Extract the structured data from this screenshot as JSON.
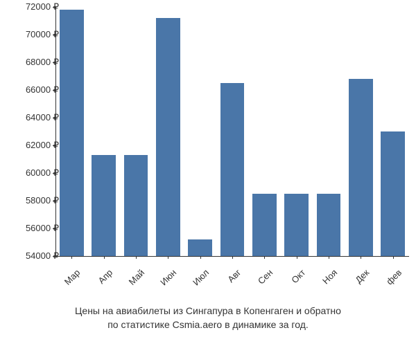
{
  "chart": {
    "type": "bar",
    "categories": [
      "Мар",
      "Апр",
      "Май",
      "Июн",
      "Июл",
      "Авг",
      "Сен",
      "Окт",
      "Ноя",
      "Дек",
      "фев"
    ],
    "values": [
      71800,
      61300,
      61300,
      71200,
      55200,
      66500,
      58500,
      58500,
      58500,
      66800,
      63000
    ],
    "bar_color": "#4a76a8",
    "ylim": [
      54000,
      72000
    ],
    "ytick_step": 2000,
    "ytick_labels": [
      "54000 ₽",
      "56000 ₽",
      "58000 ₽",
      "60000 ₽",
      "62000 ₽",
      "64000 ₽",
      "66000 ₽",
      "68000 ₽",
      "70000 ₽",
      "72000 ₽"
    ],
    "ytick_values": [
      54000,
      56000,
      58000,
      60000,
      62000,
      64000,
      66000,
      68000,
      70000,
      72000
    ],
    "background_color": "#ffffff",
    "axis_color": "#333333",
    "label_fontsize": 13,
    "bar_width": 0.75,
    "x_label_rotation": -45
  },
  "caption": {
    "line1": "Цены на авиабилеты из Сингапура в Копенгаген и обратно",
    "line2": "по статистике Csmia.aero в динамике за год."
  }
}
